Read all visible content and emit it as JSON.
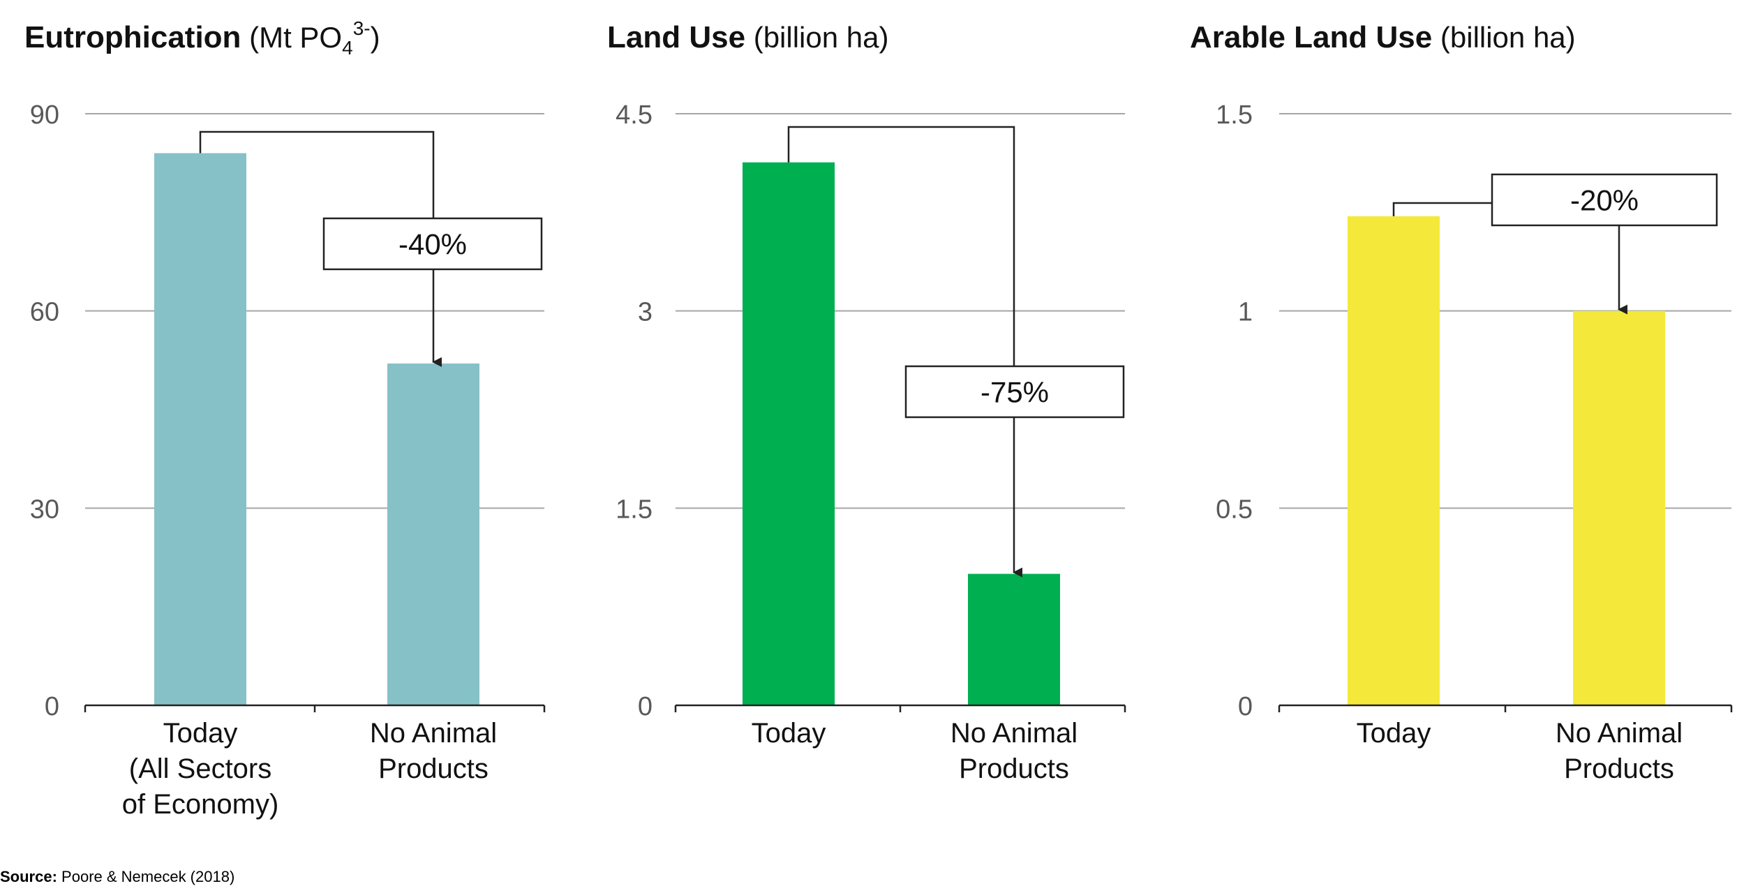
{
  "chart_data": [
    {
      "type": "bar",
      "title": "Eutrophication",
      "unit": "(Mt PO",
      "unit_sub": "4",
      "unit_sup": "3-",
      "unit_end": ")",
      "categories": [
        [
          "Today",
          "(All Sectors",
          "of Economy)"
        ],
        [
          "No Animal",
          "Products"
        ]
      ],
      "values": [
        84,
        52
      ],
      "ylim": [
        0,
        90
      ],
      "yticks": [
        0,
        30,
        60,
        90
      ],
      "ytick_labels": [
        "0",
        "30",
        "60",
        "90"
      ],
      "color": "#86c1c8",
      "change_label": "-40%",
      "grid": true
    },
    {
      "type": "bar",
      "title": "Land Use",
      "unit": "(billion ha)",
      "categories": [
        [
          "Today"
        ],
        [
          "No Animal",
          "Products"
        ]
      ],
      "values": [
        4.13,
        1.0
      ],
      "ylim": [
        0,
        4.5
      ],
      "yticks": [
        0,
        1.5,
        3,
        4.5
      ],
      "ytick_labels": [
        "0",
        "1.5",
        "3",
        "4.5"
      ],
      "color": "#00af50",
      "change_label": "-75%",
      "grid": true
    },
    {
      "type": "bar",
      "title": "Arable Land Use",
      "unit": "(billion ha)",
      "categories": [
        [
          "Today"
        ],
        [
          "No Animal",
          "Products"
        ]
      ],
      "values": [
        1.24,
        1.0
      ],
      "ylim": [
        0,
        1.5
      ],
      "yticks": [
        0,
        0.5,
        1,
        1.5
      ],
      "ytick_labels": [
        "0",
        "0.5",
        "1",
        "1.5"
      ],
      "color": "#f4e93b",
      "change_label": "-20%",
      "grid": true
    }
  ],
  "source": {
    "label": "Source:",
    "text": "Poore & Nemecek (2018)"
  }
}
